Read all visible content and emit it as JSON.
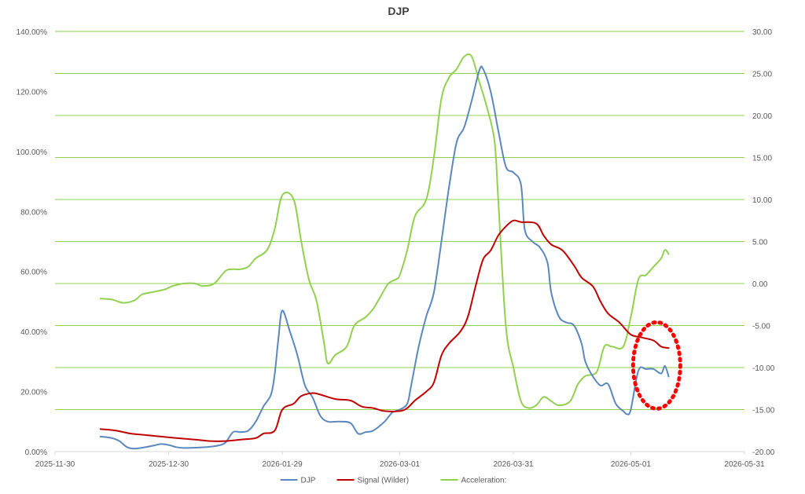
{
  "chart_data": {
    "type": "line",
    "title": "DJP",
    "x_ticks": [
      "2025-11-30",
      "2025-12-30",
      "2026-01-29",
      "2026-03-01",
      "2026-03-31",
      "2026-05-01",
      "2026-05-31"
    ],
    "y_left": {
      "min": 0,
      "max": 140,
      "ticks": [
        "0.00%",
        "20.00%",
        "40.00%",
        "60.00%",
        "80.00%",
        "100.00%",
        "120.00%",
        "140.00%"
      ]
    },
    "y_right": {
      "min": -20,
      "max": 30,
      "ticks": [
        "-20.00",
        "-15.00",
        "-10.00",
        "-5.00",
        "0.00",
        "5.00",
        "10.00",
        "15.00",
        "20.00",
        "25.00",
        "30.00"
      ]
    },
    "grid": "horizontal (right axis)",
    "legend_position": "bottom",
    "series": [
      {
        "name": "DJP",
        "axis": "left",
        "color": "#5b87bf",
        "points": [
          [
            "2025-12-12",
            5.0
          ],
          [
            "2025-12-15",
            4.5
          ],
          [
            "2025-12-17",
            3.5
          ],
          [
            "2025-12-19",
            1.5
          ],
          [
            "2025-12-21",
            1.0
          ],
          [
            "2025-12-24",
            1.5
          ],
          [
            "2025-12-26",
            2.0
          ],
          [
            "2025-12-28",
            2.5
          ],
          [
            "2025-12-30",
            2.2
          ],
          [
            "2026-01-01",
            1.5
          ],
          [
            "2026-01-03",
            1.2
          ],
          [
            "2026-01-06",
            1.3
          ],
          [
            "2026-01-09",
            1.5
          ],
          [
            "2026-01-12",
            2.0
          ],
          [
            "2026-01-14",
            3.0
          ],
          [
            "2026-01-16",
            6.5
          ],
          [
            "2026-01-18",
            6.5
          ],
          [
            "2026-01-20",
            7.0
          ],
          [
            "2026-01-22",
            10.0
          ],
          [
            "2026-01-24",
            15.0
          ],
          [
            "2026-01-26",
            19.0
          ],
          [
            "2026-01-27",
            26.0
          ],
          [
            "2026-01-28",
            38.0
          ],
          [
            "2026-01-29",
            47.0
          ],
          [
            "2026-01-31",
            40.0
          ],
          [
            "2026-02-02",
            32.0
          ],
          [
            "2026-02-04",
            22.0
          ],
          [
            "2026-02-06",
            18.0
          ],
          [
            "2026-02-08",
            12.0
          ],
          [
            "2026-02-10",
            10.0
          ],
          [
            "2026-02-13",
            10.0
          ],
          [
            "2026-02-16",
            9.5
          ],
          [
            "2026-02-18",
            6.0
          ],
          [
            "2026-02-20",
            6.5
          ],
          [
            "2026-02-22",
            7.0
          ],
          [
            "2026-02-25",
            10.0
          ],
          [
            "2026-02-27",
            13.0
          ],
          [
            "2026-03-01",
            14.0
          ],
          [
            "2026-03-03",
            16.0
          ],
          [
            "2026-03-04",
            22.0
          ],
          [
            "2026-03-06",
            35.0
          ],
          [
            "2026-03-08",
            45.0
          ],
          [
            "2026-03-10",
            53.0
          ],
          [
            "2026-03-12",
            70.0
          ],
          [
            "2026-03-14",
            88.0
          ],
          [
            "2026-03-16",
            103.0
          ],
          [
            "2026-03-18",
            108.0
          ],
          [
            "2026-03-20",
            117.0
          ],
          [
            "2026-03-22",
            127.0
          ],
          [
            "2026-03-23",
            127.5
          ],
          [
            "2026-03-25",
            120.0
          ],
          [
            "2026-03-27",
            107.0
          ],
          [
            "2026-03-29",
            95.0
          ],
          [
            "2026-03-31",
            93.0
          ],
          [
            "2026-04-02",
            89.0
          ],
          [
            "2026-04-03",
            74.0
          ],
          [
            "2026-04-05",
            70.0
          ],
          [
            "2026-04-07",
            68.0
          ],
          [
            "2026-04-09",
            63.0
          ],
          [
            "2026-04-10",
            53.0
          ],
          [
            "2026-04-12",
            45.0
          ],
          [
            "2026-04-14",
            43.0
          ],
          [
            "2026-04-16",
            42.0
          ],
          [
            "2026-04-18",
            36.0
          ],
          [
            "2026-04-19",
            30.0
          ],
          [
            "2026-04-21",
            25.0
          ],
          [
            "2026-04-23",
            22.0
          ],
          [
            "2026-04-25",
            22.5
          ],
          [
            "2026-04-27",
            16.0
          ],
          [
            "2026-04-29",
            13.5
          ],
          [
            "2026-04-30",
            12.5
          ],
          [
            "2026-05-01",
            14.0
          ],
          [
            "2026-05-03",
            27.0
          ],
          [
            "2026-05-05",
            27.5
          ],
          [
            "2026-05-07",
            27.5
          ],
          [
            "2026-05-09",
            26.0
          ],
          [
            "2026-05-10",
            28.5
          ],
          [
            "2026-05-11",
            25.0
          ]
        ]
      },
      {
        "name": "Signal (Wilder)",
        "axis": "left",
        "color": "#c00000",
        "points": [
          [
            "2025-12-12",
            7.5
          ],
          [
            "2025-12-16",
            7.0
          ],
          [
            "2025-12-20",
            6.0
          ],
          [
            "2025-12-24",
            5.5
          ],
          [
            "2025-12-28",
            5.0
          ],
          [
            "2026-01-01",
            4.5
          ],
          [
            "2026-01-06",
            4.0
          ],
          [
            "2026-01-10",
            3.5
          ],
          [
            "2026-01-14",
            3.5
          ],
          [
            "2026-01-18",
            4.0
          ],
          [
            "2026-01-22",
            4.5
          ],
          [
            "2026-01-24",
            6.0
          ],
          [
            "2026-01-27",
            7.0
          ],
          [
            "2026-01-29",
            14.0
          ],
          [
            "2026-02-01",
            16.0
          ],
          [
            "2026-02-03",
            18.5
          ],
          [
            "2026-02-06",
            19.5
          ],
          [
            "2026-02-08",
            19.0
          ],
          [
            "2026-02-12",
            17.5
          ],
          [
            "2026-02-16",
            17.0
          ],
          [
            "2026-02-19",
            15.0
          ],
          [
            "2026-02-22",
            14.5
          ],
          [
            "2026-02-25",
            13.5
          ],
          [
            "2026-03-01",
            13.5
          ],
          [
            "2026-03-03",
            14.5
          ],
          [
            "2026-03-05",
            17.0
          ],
          [
            "2026-03-08",
            20.0
          ],
          [
            "2026-03-10",
            23.0
          ],
          [
            "2026-03-12",
            32.0
          ],
          [
            "2026-03-14",
            36.0
          ],
          [
            "2026-03-17",
            40.0
          ],
          [
            "2026-03-19",
            45.0
          ],
          [
            "2026-03-21",
            55.0
          ],
          [
            "2026-03-23",
            64.0
          ],
          [
            "2026-03-25",
            67.0
          ],
          [
            "2026-03-27",
            72.0
          ],
          [
            "2026-03-29",
            75.0
          ],
          [
            "2026-03-31",
            77.0
          ],
          [
            "2026-04-02",
            76.5
          ],
          [
            "2026-04-06",
            76.0
          ],
          [
            "2026-04-08",
            72.0
          ],
          [
            "2026-04-10",
            69.0
          ],
          [
            "2026-04-13",
            67.0
          ],
          [
            "2026-04-16",
            62.0
          ],
          [
            "2026-04-18",
            58.0
          ],
          [
            "2026-04-21",
            55.0
          ],
          [
            "2026-04-23",
            50.0
          ],
          [
            "2026-04-25",
            46.0
          ],
          [
            "2026-04-28",
            43.0
          ],
          [
            "2026-05-01",
            39.0
          ],
          [
            "2026-05-04",
            38.0
          ],
          [
            "2026-05-07",
            37.0
          ],
          [
            "2026-05-09",
            35.0
          ],
          [
            "2026-05-11",
            34.5
          ]
        ]
      },
      {
        "name": "Acceleration:",
        "axis": "right",
        "color": "#92d050",
        "points": [
          [
            "2025-12-12",
            -1.8
          ],
          [
            "2025-12-15",
            -1.9
          ],
          [
            "2025-12-18",
            -2.3
          ],
          [
            "2025-12-21",
            -2.0
          ],
          [
            "2025-12-23",
            -1.3
          ],
          [
            "2025-12-26",
            -1.0
          ],
          [
            "2025-12-29",
            -0.7
          ],
          [
            "2025-12-31",
            -0.3
          ],
          [
            "2026-01-03",
            0.0
          ],
          [
            "2026-01-06",
            0.0
          ],
          [
            "2026-01-08",
            -0.3
          ],
          [
            "2026-01-11",
            0.0
          ],
          [
            "2026-01-14",
            1.5
          ],
          [
            "2026-01-16",
            1.7
          ],
          [
            "2026-01-18",
            1.7
          ],
          [
            "2026-01-20",
            2.0
          ],
          [
            "2026-01-22",
            3.0
          ],
          [
            "2026-01-25",
            4.0
          ],
          [
            "2026-01-27",
            6.5
          ],
          [
            "2026-01-29",
            10.5
          ],
          [
            "2026-02-01",
            10.0
          ],
          [
            "2026-02-03",
            5.0
          ],
          [
            "2026-02-05",
            0.5
          ],
          [
            "2026-02-07",
            -2.0
          ],
          [
            "2026-02-09",
            -7.0
          ],
          [
            "2026-02-10",
            -9.5
          ],
          [
            "2026-02-12",
            -8.5
          ],
          [
            "2026-02-15",
            -7.5
          ],
          [
            "2026-02-17",
            -5.0
          ],
          [
            "2026-02-20",
            -4.0
          ],
          [
            "2026-02-22",
            -3.0
          ],
          [
            "2026-02-24",
            -1.5
          ],
          [
            "2026-02-26",
            0.0
          ],
          [
            "2026-02-28",
            0.5
          ],
          [
            "2026-03-01",
            1.0
          ],
          [
            "2026-03-03",
            4.0
          ],
          [
            "2026-03-05",
            8.0
          ],
          [
            "2026-03-08",
            10.0
          ],
          [
            "2026-03-10",
            15.0
          ],
          [
            "2026-03-12",
            22.0
          ],
          [
            "2026-03-14",
            24.5
          ],
          [
            "2026-03-16",
            25.5
          ],
          [
            "2026-03-18",
            27.0
          ],
          [
            "2026-03-20",
            27.0
          ],
          [
            "2026-03-22",
            24.0
          ],
          [
            "2026-03-24",
            21.0
          ],
          [
            "2026-03-26",
            17.0
          ],
          [
            "2026-03-27",
            10.0
          ],
          [
            "2026-03-29",
            -5.0
          ],
          [
            "2026-03-31",
            -10.0
          ],
          [
            "2026-04-02",
            -14.0
          ],
          [
            "2026-04-04",
            -14.8
          ],
          [
            "2026-04-06",
            -14.5
          ],
          [
            "2026-04-08",
            -13.5
          ],
          [
            "2026-04-10",
            -14.0
          ],
          [
            "2026-04-12",
            -14.5
          ],
          [
            "2026-04-15",
            -14.0
          ],
          [
            "2026-04-17",
            -12.0
          ],
          [
            "2026-04-19",
            -11.0
          ],
          [
            "2026-04-22",
            -10.5
          ],
          [
            "2026-04-24",
            -7.5
          ],
          [
            "2026-04-26",
            -7.5
          ],
          [
            "2026-04-29",
            -7.5
          ],
          [
            "2026-05-01",
            -4.0
          ],
          [
            "2026-05-03",
            0.5
          ],
          [
            "2026-05-05",
            1.0
          ],
          [
            "2026-05-07",
            2.0
          ],
          [
            "2026-05-09",
            3.0
          ],
          [
            "2026-05-10",
            4.0
          ],
          [
            "2026-05-11",
            3.5
          ]
        ]
      }
    ],
    "annotations": [
      {
        "type": "dotted-ellipse",
        "color": "#ff0000",
        "around_date": "2026-05-07",
        "y_left_center": 30
      }
    ]
  }
}
